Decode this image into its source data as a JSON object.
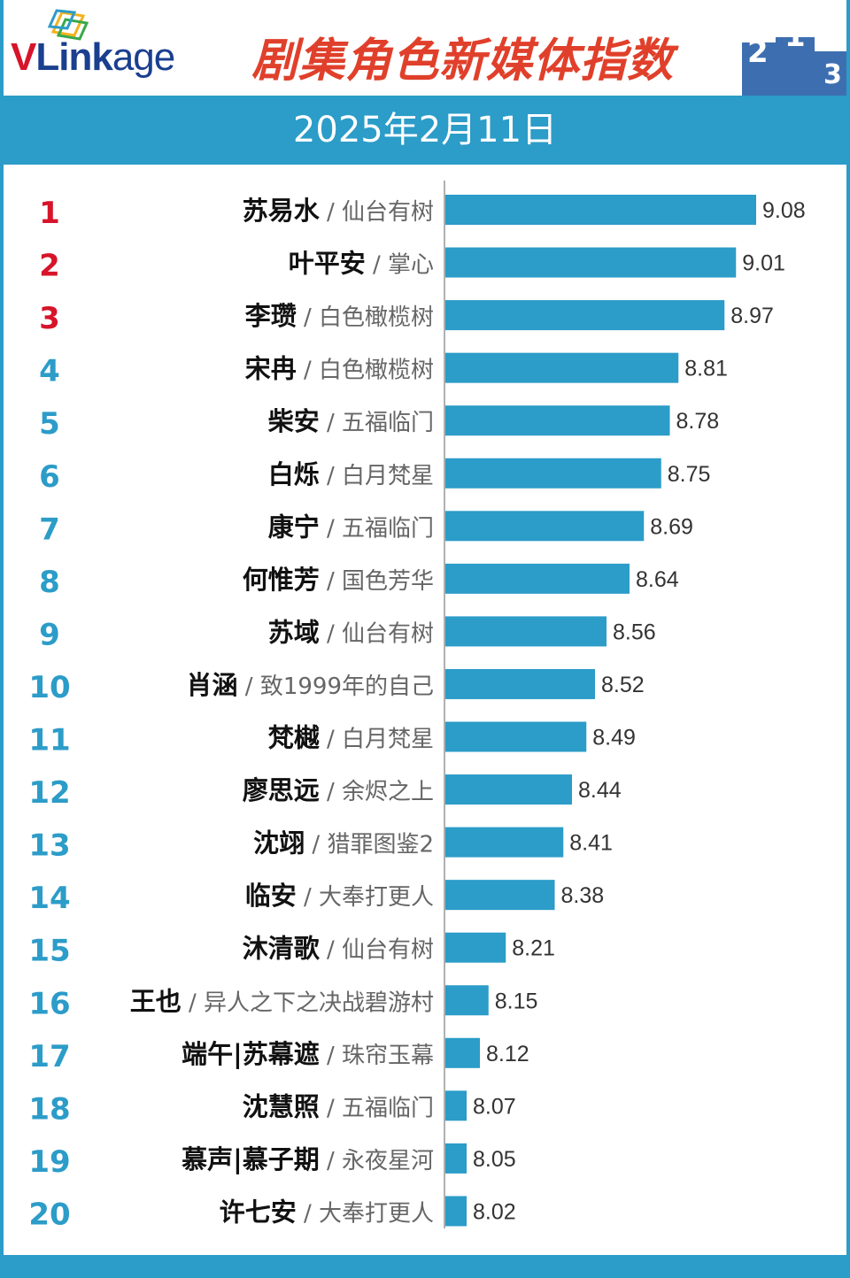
{
  "header": {
    "logo": {
      "v": "V",
      "link": "Link",
      "age": "age"
    },
    "title": "剧集角色新媒体指数",
    "podium": [
      "2",
      "1",
      "3"
    ]
  },
  "date": "2025年2月11日",
  "chart_data": {
    "type": "bar",
    "orientation": "horizontal",
    "title": "剧集角色新媒体指数",
    "subtitle": "2025年2月11日",
    "colors": {
      "bar": "#2c9cc8",
      "rank_top": "#d7142a",
      "rank_other": "#2c9cc8",
      "band": "#2c9cc8"
    },
    "rows": [
      {
        "rank": "1",
        "role": "苏易水",
        "drama": "仙台有树",
        "value": 9.08,
        "label": "9.08"
      },
      {
        "rank": "2",
        "role": "叶平安",
        "drama": "掌心",
        "value": 9.01,
        "label": "9.01"
      },
      {
        "rank": "3",
        "role": "李瓒",
        "drama": "白色橄榄树",
        "value": 8.97,
        "label": "8.97"
      },
      {
        "rank": "4",
        "role": "宋冉",
        "drama": "白色橄榄树",
        "value": 8.81,
        "label": "8.81"
      },
      {
        "rank": "5",
        "role": "柴安",
        "drama": "五福临门",
        "value": 8.78,
        "label": "8.78"
      },
      {
        "rank": "6",
        "role": "白烁",
        "drama": "白月梵星",
        "value": 8.75,
        "label": "8.75"
      },
      {
        "rank": "7",
        "role": "康宁",
        "drama": "五福临门",
        "value": 8.69,
        "label": "8.69"
      },
      {
        "rank": "8",
        "role": "何惟芳",
        "drama": "国色芳华",
        "value": 8.64,
        "label": "8.64"
      },
      {
        "rank": "9",
        "role": "苏域",
        "drama": "仙台有树",
        "value": 8.56,
        "label": "8.56"
      },
      {
        "rank": "10",
        "role": "肖涵",
        "drama": "致1999年的自己",
        "value": 8.52,
        "label": "8.52"
      },
      {
        "rank": "11",
        "role": "梵樾",
        "drama": "白月梵星",
        "value": 8.49,
        "label": "8.49"
      },
      {
        "rank": "12",
        "role": "廖思远",
        "drama": "余烬之上",
        "value": 8.44,
        "label": "8.44"
      },
      {
        "rank": "13",
        "role": "沈翊",
        "drama": "猎罪图鉴2",
        "value": 8.41,
        "label": "8.41"
      },
      {
        "rank": "14",
        "role": "临安",
        "drama": "大奉打更人",
        "value": 8.38,
        "label": "8.38"
      },
      {
        "rank": "15",
        "role": "沐清歌",
        "drama": "仙台有树",
        "value": 8.21,
        "label": "8.21"
      },
      {
        "rank": "16",
        "role": "王也",
        "drama": "异人之下之决战碧游村",
        "value": 8.15,
        "label": "8.15"
      },
      {
        "rank": "17",
        "role": "端午|苏幕遮",
        "drama": "珠帘玉幕",
        "value": 8.12,
        "label": "8.12"
      },
      {
        "rank": "18",
        "role": "沈慧照",
        "drama": "五福临门",
        "value": 8.07,
        "label": "8.07"
      },
      {
        "rank": "19",
        "role": "慕声|慕子期",
        "drama": "永夜星河",
        "value": 8.05,
        "label": "8.05"
      },
      {
        "rank": "20",
        "role": "许七安",
        "drama": "大奉打更人",
        "value": 8.02,
        "label": "8.02"
      }
    ]
  }
}
